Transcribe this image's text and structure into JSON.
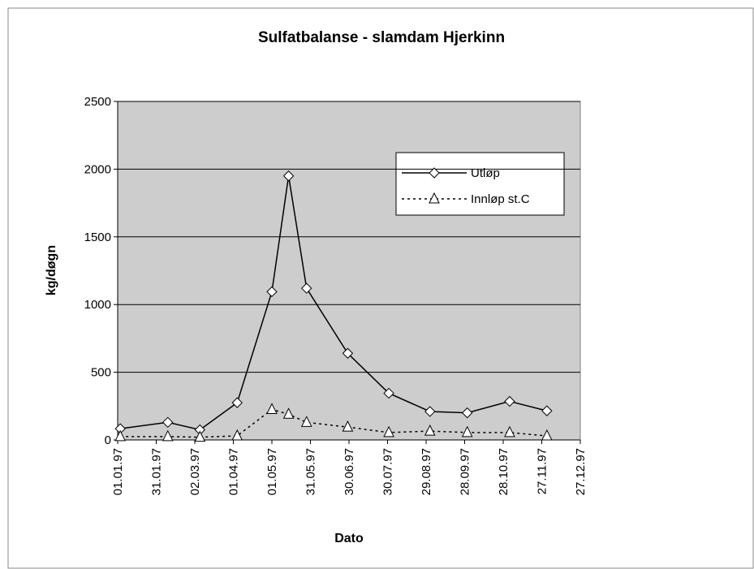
{
  "chart_data": {
    "type": "line",
    "title": "Sulfatbalanse - slamdam Hjerkinn",
    "xlabel": "Dato",
    "ylabel": "kg/døgn",
    "x": [
      "03.01.97",
      "09.02.97",
      "06.03.97",
      "04.04.97",
      "01.05.97",
      "14.05.97",
      "28.05.97",
      "29.06.97",
      "31.07.97",
      "01.09.97",
      "30.09.97",
      "02.11.97",
      "01.12.97"
    ],
    "series": [
      {
        "name": "Utløp",
        "color": "#000000",
        "marker": "diamond",
        "dash": "solid",
        "values": [
          83,
          130,
          75,
          275,
          1095,
          1950,
          1120,
          640,
          345,
          210,
          200,
          285,
          215
        ]
      },
      {
        "name": "Innløp st.C",
        "color": "#000000",
        "marker": "triangle",
        "dash": "dotted",
        "values": [
          25,
          25,
          20,
          30,
          225,
          190,
          130,
          95,
          55,
          65,
          55,
          55,
          30
        ]
      }
    ],
    "xlim": [
      "01.01.97",
      "27.12.97"
    ],
    "xticks": [
      "01.01.97",
      "31.01.97",
      "02.03.97",
      "01.04.97",
      "01.05.97",
      "31.05.97",
      "30.06.97",
      "30.07.97",
      "29.08.97",
      "28.09.97",
      "28.10.97",
      "27.11.97",
      "27.12.97"
    ],
    "ylim": [
      0,
      2500
    ],
    "yticks": [
      0,
      500,
      1000,
      1500,
      2000,
      2500
    ],
    "grid": true,
    "legend": "upper right"
  }
}
